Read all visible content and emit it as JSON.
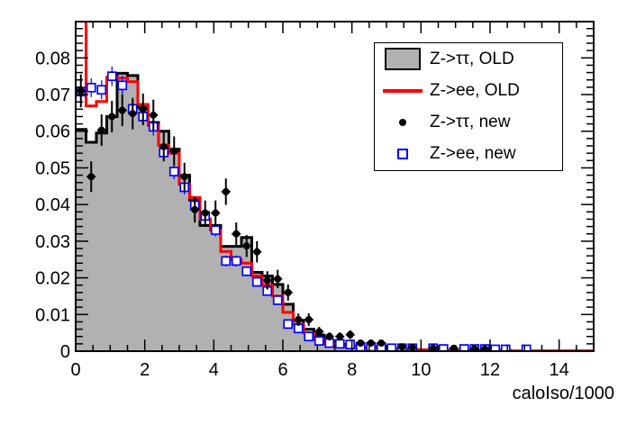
{
  "chart_data": {
    "type": "bar",
    "subtype": "histogram-with-points",
    "title": "",
    "xlabel": "caloIso/1000",
    "ylabel": "",
    "xlim": [
      0,
      15
    ],
    "ylim": [
      0,
      0.0899
    ],
    "grid": false,
    "bin_width": 0.3,
    "bin_start": 0,
    "x_major_ticks": [
      0,
      2,
      4,
      6,
      8,
      10,
      12,
      14
    ],
    "x_tick_labels": [
      "0",
      "2",
      "4",
      "6",
      "8",
      "10",
      "12",
      "14"
    ],
    "x_minor_step": 0.5,
    "y_major_ticks": [
      0,
      0.01,
      0.02,
      0.03,
      0.04,
      0.05,
      0.06,
      0.07,
      0.08
    ],
    "y_tick_labels": [
      "0",
      "0.01",
      "0.02",
      "0.03",
      "0.04",
      "0.05",
      "0.06",
      "0.07",
      "0.08"
    ],
    "y_minor_step": 0.002,
    "colors": {
      "gray_fill": "#b1b1b1",
      "hist_outline": "#000000",
      "red_line": "#ff0000",
      "blue_marker": "#0000ff",
      "black_marker": "#000000",
      "frame": "#000000",
      "background": "#ffffff"
    },
    "series": [
      {
        "name": "Z->tautau, OLD",
        "type": "filled-histogram",
        "values": [
          0.0605,
          0.057,
          0.0595,
          0.064,
          0.0758,
          0.0752,
          0.0665,
          0.0624,
          0.06,
          0.0551,
          0.048,
          0.0412,
          0.0343,
          0.0343,
          0.0286,
          0.0286,
          0.031,
          0.0215,
          0.0205,
          0.0182,
          0.0128,
          0.0084,
          0.006,
          0.0044,
          0.0027,
          0.0018,
          0.0014,
          0.001,
          0.0008,
          0.0012,
          0.0006,
          0.0005,
          0.0004,
          0.0003,
          0.0002,
          0.0002,
          0.0001,
          0.0001,
          0.0001,
          0.0001,
          0.0001,
          0,
          0,
          0,
          0,
          0,
          0,
          0,
          0,
          0
        ]
      },
      {
        "name": "Z->ee, OLD",
        "type": "line-histogram",
        "values": [
          0.12,
          0.0669,
          0.0681,
          0.0747,
          0.0745,
          0.0735,
          0.0673,
          0.0616,
          0.0562,
          0.054,
          0.0455,
          0.0419,
          0.036,
          0.033,
          0.0272,
          0.025,
          0.024,
          0.0205,
          0.018,
          0.015,
          0.0106,
          0.0073,
          0.0049,
          0.0032,
          0.002,
          0.0014,
          0.0012,
          0.001,
          0.0008,
          0.0007,
          0.0006,
          0.0005,
          0.0005,
          0.0004,
          0.0004,
          0.0003,
          0.0003,
          0.0003,
          0.0002,
          0.0002,
          0.0002,
          0.0002,
          0.0001,
          0.0001,
          0.0001,
          0.0001,
          0.0001,
          0.0001,
          0.0001,
          0.0001
        ]
      },
      {
        "name": "Z->tautau, new",
        "type": "points",
        "marker": "filled-circle",
        "points": [
          [
            0.15,
            0.071,
            0.0045
          ],
          [
            0.45,
            0.0476,
            0.0042
          ],
          [
            0.75,
            0.0603,
            0.0043
          ],
          [
            1.05,
            0.064,
            0.0043
          ],
          [
            1.35,
            0.0657,
            0.0043
          ],
          [
            1.65,
            0.0648,
            0.0043
          ],
          [
            1.95,
            0.066,
            0.0043
          ],
          [
            2.25,
            0.0644,
            0.0042
          ],
          [
            2.55,
            0.0558,
            0.004
          ],
          [
            2.85,
            0.0546,
            0.004
          ],
          [
            3.15,
            0.0476,
            0.0038
          ],
          [
            3.45,
            0.0386,
            0.0035
          ],
          [
            3.75,
            0.0377,
            0.0034
          ],
          [
            4.05,
            0.0377,
            0.0034
          ],
          [
            4.35,
            0.0435,
            0.0036
          ],
          [
            4.65,
            0.032,
            0.0031
          ],
          [
            4.95,
            0.0287,
            0.003
          ],
          [
            5.25,
            0.0271,
            0.0029
          ],
          [
            5.55,
            0.0193,
            0.0025
          ],
          [
            5.85,
            0.0197,
            0.0025
          ],
          [
            6.15,
            0.016,
            0.0022
          ],
          [
            6.45,
            0.0086,
            0.0017
          ],
          [
            6.75,
            0.0086,
            0.0017
          ],
          [
            7.05,
            0.0053,
            0.0013
          ],
          [
            7.35,
            0.004,
            0.0011
          ],
          [
            7.65,
            0.004,
            0.0011
          ],
          [
            7.95,
            0.0045,
            0.0012
          ],
          [
            8.25,
            0.0022,
            0.0008
          ],
          [
            8.55,
            0.0022,
            0.0008
          ],
          [
            8.85,
            0.0022,
            0.0008
          ],
          [
            9.45,
            0.0012,
            0.0006
          ],
          [
            9.75,
            0.001,
            0.0005
          ],
          [
            10.35,
            0.0008,
            0.0005
          ],
          [
            10.95,
            0.0008,
            0.0005
          ],
          [
            11.55,
            0.0006,
            0.0004
          ],
          [
            11.85,
            0.0006,
            0.0004
          ]
        ]
      },
      {
        "name": "Z->ee, new",
        "type": "points",
        "marker": "open-square",
        "points": [
          [
            0.15,
            0.0708,
            0.0026
          ],
          [
            0.45,
            0.0719,
            0.0026
          ],
          [
            0.75,
            0.0713,
            0.0026
          ],
          [
            1.05,
            0.075,
            0.0027
          ],
          [
            1.35,
            0.0725,
            0.0026
          ],
          [
            1.65,
            0.0661,
            0.0025
          ],
          [
            1.95,
            0.064,
            0.0024
          ],
          [
            2.25,
            0.0612,
            0.0024
          ],
          [
            2.55,
            0.0542,
            0.0022
          ],
          [
            2.85,
            0.049,
            0.0021
          ],
          [
            3.15,
            0.0447,
            0.002
          ],
          [
            3.45,
            0.0398,
            0.0019
          ],
          [
            3.75,
            0.0369,
            0.0018
          ],
          [
            4.05,
            0.033,
            0.0017
          ],
          [
            4.35,
            0.0246,
            0.0015
          ],
          [
            4.65,
            0.0246,
            0.0015
          ],
          [
            4.95,
            0.0218,
            0.0014
          ],
          [
            5.25,
            0.0189,
            0.0013
          ],
          [
            5.55,
            0.0164,
            0.0012
          ],
          [
            5.85,
            0.0139,
            0.0011
          ],
          [
            6.15,
            0.0074,
            0.0008
          ],
          [
            6.45,
            0.0062,
            0.0008
          ],
          [
            6.75,
            0.004,
            0.0006
          ],
          [
            7.05,
            0.0028,
            0.0005
          ],
          [
            7.35,
            0.0022,
            0.0005
          ],
          [
            7.65,
            0.002,
            0.0004
          ],
          [
            7.95,
            0.0018,
            0.0004
          ],
          [
            8.25,
            0.0012,
            0.0004
          ],
          [
            8.55,
            0.0012,
            0.0004
          ],
          [
            8.85,
            0.001,
            0.0003
          ],
          [
            9.15,
            0.0008,
            0.0003
          ],
          [
            9.45,
            0.0008,
            0.0003
          ],
          [
            9.75,
            0.0008,
            0.0003
          ],
          [
            10.35,
            0.0008,
            0.0003
          ],
          [
            10.65,
            0.0006,
            0.0003
          ],
          [
            11.25,
            0.0006,
            0.0003
          ],
          [
            11.55,
            0.0006,
            0.0003
          ],
          [
            11.85,
            0.0006,
            0.0003
          ],
          [
            12.15,
            0.0005,
            0.0002
          ],
          [
            12.45,
            0.0005,
            0.0002
          ],
          [
            13.05,
            0.0005,
            0.0002
          ]
        ]
      }
    ],
    "legend": {
      "position": "top-right",
      "entries": [
        {
          "label": "Z->ττ, OLD",
          "swatch": "gray-filled-box"
        },
        {
          "label": "Z->ee, OLD",
          "swatch": "red-line"
        },
        {
          "label": "Z->ττ, new",
          "swatch": "black-filled-circle"
        },
        {
          "label": "Z->ee, new",
          "swatch": "blue-open-square"
        }
      ]
    }
  }
}
